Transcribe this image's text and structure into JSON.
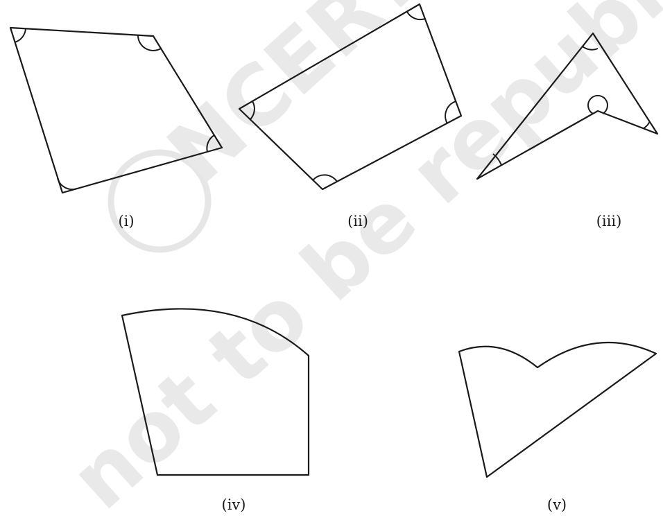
{
  "watermark_text": "© NCERT not to be republished",
  "watermark_color": "#e6e6e6",
  "stroke_color": "#1a1a1a",
  "figures": [
    {
      "id": "i",
      "label": "(i)",
      "marked_angles": 4
    },
    {
      "id": "ii",
      "label": "(ii)",
      "marked_angles": 4
    },
    {
      "id": "iii",
      "label": "(iii)",
      "marked_angles": 4
    },
    {
      "id": "iv",
      "label": "(iv)",
      "marked_angles": 0
    },
    {
      "id": "v",
      "label": "(v)",
      "marked_angles": 0
    }
  ]
}
